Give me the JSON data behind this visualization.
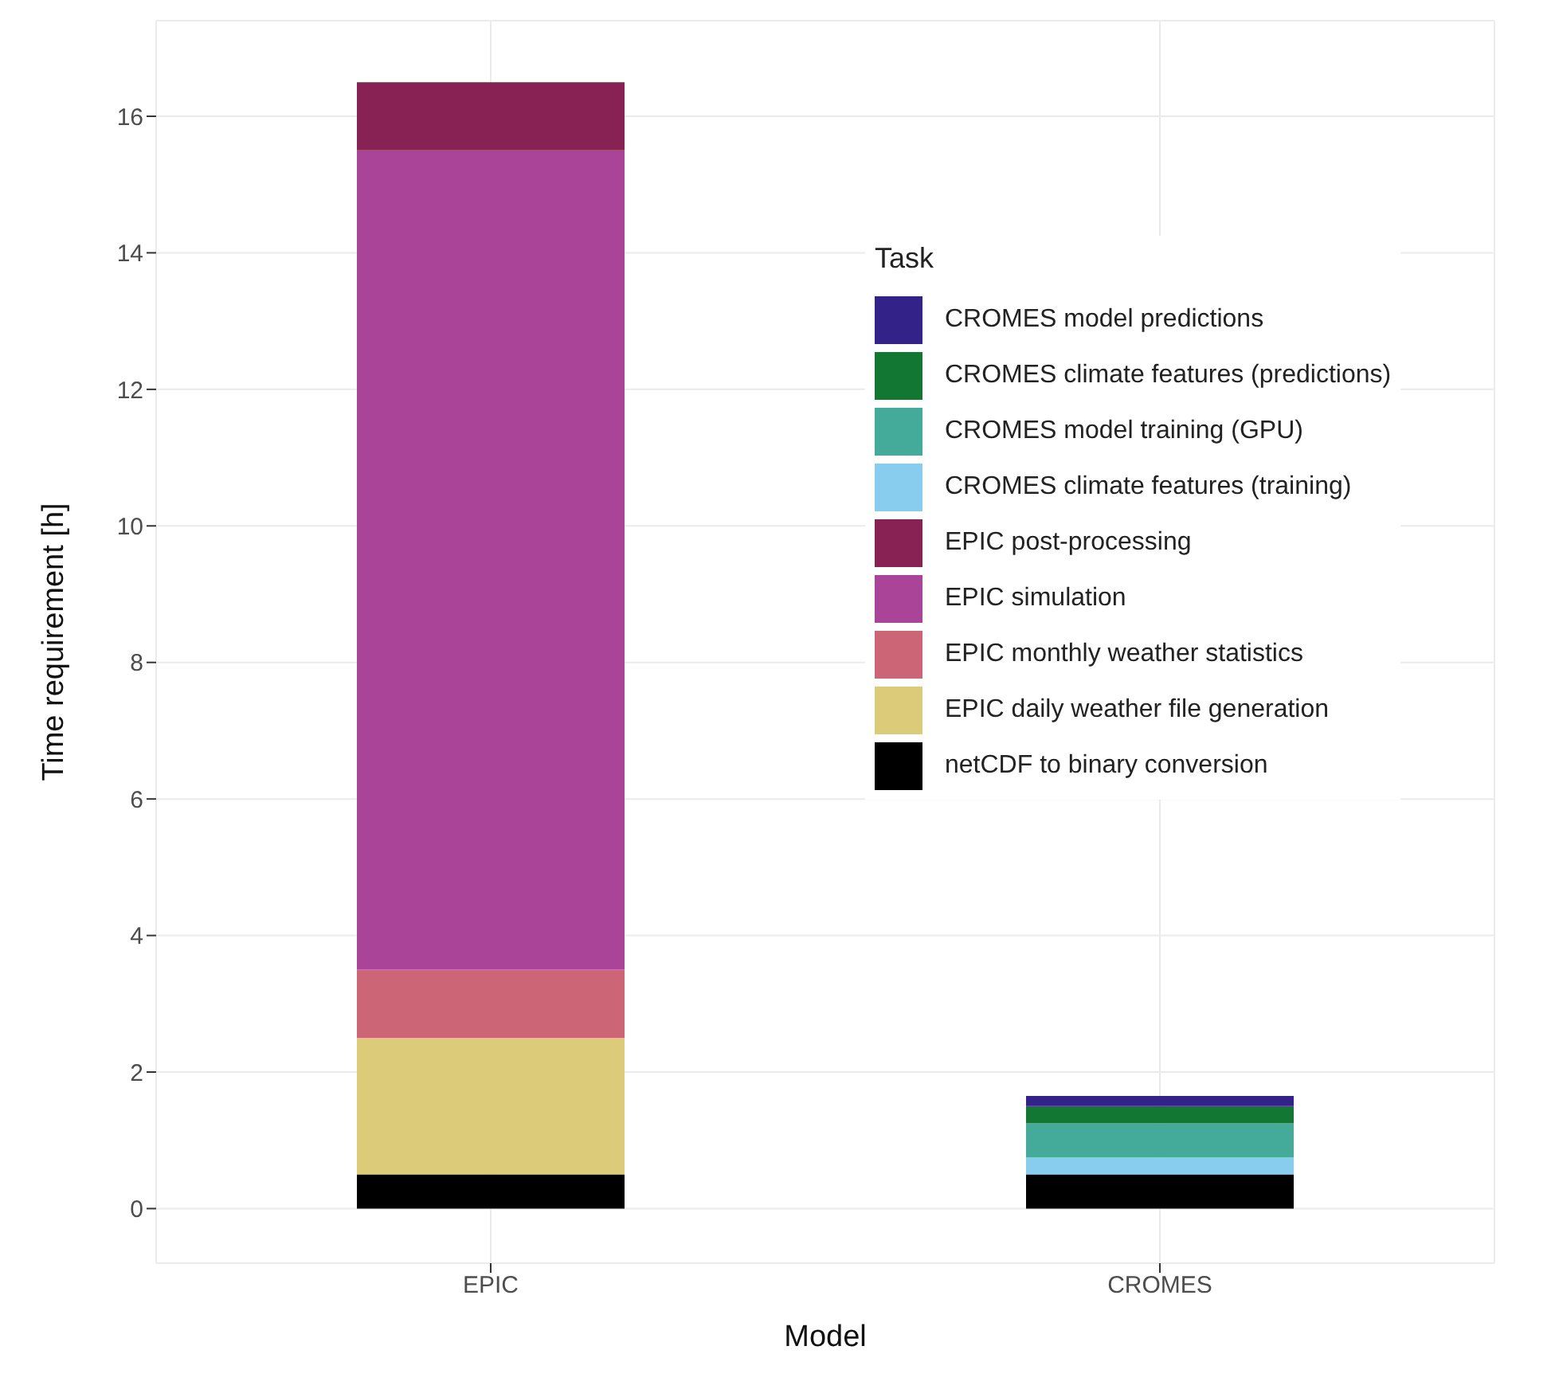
{
  "chart_data": {
    "type": "bar",
    "stacked": true,
    "xlabel": "Model",
    "ylabel": "Time requirement [h]",
    "legend_title": "Task",
    "legend": "right",
    "grid": true,
    "categories": [
      "EPIC",
      "CROMES"
    ],
    "ylim": [
      -0.8,
      17.4
    ],
    "yticks": [
      0,
      2,
      4,
      6,
      8,
      10,
      12,
      14,
      16
    ],
    "series": [
      {
        "name": "netCDF to binary conversion",
        "color": "#000000",
        "values": [
          0.5,
          0.5
        ]
      },
      {
        "name": "EPIC daily weather file generation",
        "color": "#dccb78",
        "values": [
          2,
          null
        ]
      },
      {
        "name": "EPIC monthly weather statistics",
        "color": "#cc6677",
        "values": [
          1,
          null
        ]
      },
      {
        "name": "EPIC simulation",
        "color": "#aa4499",
        "values": [
          12,
          null
        ]
      },
      {
        "name": "EPIC post-processing",
        "color": "#882255",
        "values": [
          1,
          null
        ]
      },
      {
        "name": "CROMES climate features (training)",
        "color": "#88ccee",
        "values": [
          null,
          0.25
        ]
      },
      {
        "name": "CROMES model training (GPU)",
        "color": "#44aa99",
        "values": [
          null,
          0.5
        ]
      },
      {
        "name": "CROMES climate features (predictions)",
        "color": "#117733",
        "values": [
          null,
          0.25
        ]
      },
      {
        "name": "CROMES model predictions",
        "color": "#332288",
        "values": [
          null,
          0.15
        ]
      }
    ]
  }
}
